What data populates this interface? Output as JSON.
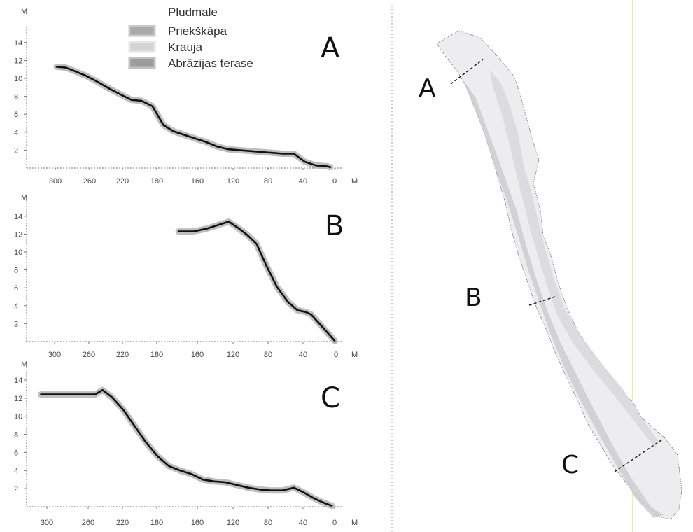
{
  "legend": {
    "title": "Pludmale",
    "items": [
      {
        "label": "Priekškāpa",
        "color": "#a9a9a9"
      },
      {
        "label": "Krauja",
        "color": "#d4d4d4"
      },
      {
        "label": "Abrāzijas terase",
        "color": "#9c9c9c"
      }
    ]
  },
  "chart_data": [
    {
      "type": "line",
      "panel": "A",
      "xlabel": "M",
      "ylabel": "M",
      "x_ticks": [
        "300",
        "260",
        "220",
        "180",
        "160",
        "120",
        "80",
        "40",
        "0"
      ],
      "y_ticks": [
        "2",
        "4",
        "6",
        "8",
        "10",
        "12",
        "14"
      ],
      "ylim": [
        0,
        15
      ],
      "grid": false,
      "series": [
        {
          "x": [
            300,
            290,
            280,
            268,
            255,
            243,
            230,
            218,
            207,
            195,
            183,
            172,
            160,
            148,
            136,
            124,
            112,
            100,
            88,
            76,
            64,
            52,
            40,
            28,
            16,
            4,
            0
          ],
          "y": [
            11.3,
            11.2,
            10.8,
            10.3,
            9.6,
            8.9,
            8.2,
            7.6,
            7.5,
            6.9,
            4.8,
            4.1,
            3.7,
            3.3,
            2.9,
            2.4,
            2.1,
            2.0,
            1.9,
            1.8,
            1.7,
            1.6,
            1.6,
            0.7,
            0.3,
            0.2,
            0.1
          ]
        }
      ]
    },
    {
      "type": "line",
      "panel": "B",
      "xlabel": "M",
      "ylabel": "M",
      "x_ticks": [
        "300",
        "260",
        "220",
        "180",
        "160",
        "120",
        "80",
        "40",
        "0"
      ],
      "y_ticks": [
        "2",
        "4",
        "6",
        "8",
        "10",
        "12",
        "14"
      ],
      "ylim": [
        0,
        15
      ],
      "grid": false,
      "series": [
        {
          "x": [
            168,
            152,
            138,
            126,
            114,
            104,
            94,
            84,
            74,
            62,
            50,
            40,
            31,
            25,
            12,
            0
          ],
          "y": [
            12.3,
            12.3,
            12.6,
            13.0,
            13.4,
            12.7,
            11.9,
            10.9,
            8.6,
            6.1,
            4.4,
            3.5,
            3.3,
            3.0,
            1.5,
            0.1
          ]
        }
      ]
    },
    {
      "type": "line",
      "panel": "C",
      "xlabel": "M",
      "ylabel": "M",
      "x_ticks": [
        "300",
        "260",
        "220",
        "180",
        "160",
        "120",
        "80",
        "40",
        "0"
      ],
      "y_ticks": [
        "2",
        "4",
        "6",
        "8",
        "10",
        "12",
        "14"
      ],
      "ylim": [
        0,
        15
      ],
      "grid": false,
      "series": [
        {
          "x": [
            307,
            296,
            284,
            272,
            260,
            250,
            242,
            232,
            220,
            208,
            196,
            184,
            172,
            160,
            148,
            136,
            124,
            112,
            100,
            88,
            76,
            64,
            52,
            40,
            30,
            20,
            10,
            0
          ],
          "y": [
            12.4,
            12.4,
            12.4,
            12.4,
            12.4,
            12.4,
            12.9,
            12.1,
            10.7,
            8.9,
            7.1,
            5.6,
            4.5,
            4.0,
            3.6,
            3.0,
            2.8,
            2.7,
            2.4,
            2.1,
            1.9,
            1.8,
            1.8,
            2.1,
            1.6,
            1.0,
            0.5,
            0.1
          ]
        }
      ]
    }
  ],
  "map": {
    "labels": [
      "A",
      "B",
      "C"
    ]
  }
}
